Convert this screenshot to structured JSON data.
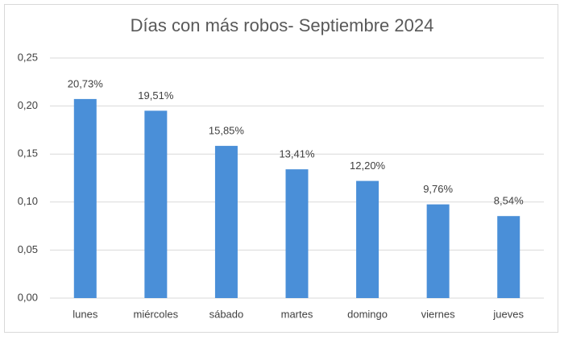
{
  "chart_data": {
    "type": "bar",
    "title": "Días con más robos- Septiembre 2024",
    "categories": [
      "lunes",
      "miércoles",
      "sábado",
      "martes",
      "domingo",
      "viernes",
      "jueves"
    ],
    "values": [
      0.2073,
      0.1951,
      0.1585,
      0.1341,
      0.122,
      0.0976,
      0.0854
    ],
    "value_labels": [
      "20,73%",
      "19,51%",
      "15,85%",
      "13,41%",
      "12,20%",
      "9,76%",
      "8,54%"
    ],
    "color": "#4a8fd8",
    "ylim": [
      0,
      0.25
    ],
    "yticks": [
      {
        "value": 0,
        "label": "0,00"
      },
      {
        "value": 0.05,
        "label": "0,05"
      },
      {
        "value": 0.1,
        "label": "0,10"
      },
      {
        "value": 0.15,
        "label": "0,15"
      },
      {
        "value": 0.2,
        "label": "0,20"
      },
      {
        "value": 0.25,
        "label": "0,25"
      }
    ],
    "grid": true
  }
}
